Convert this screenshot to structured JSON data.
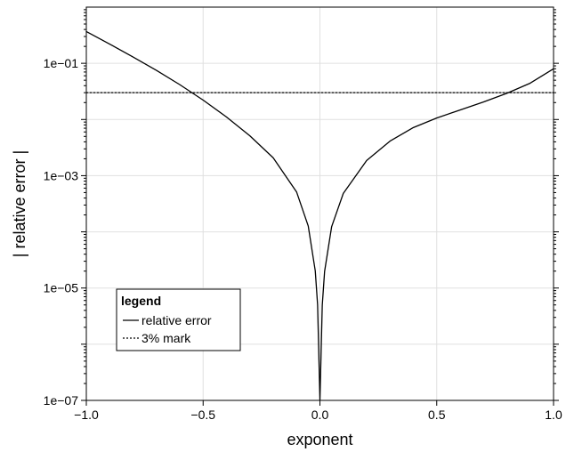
{
  "chart_data": {
    "type": "line",
    "title": "",
    "xlabel": "exponent",
    "ylabel": "| relative error |",
    "xlim": [
      -1.0,
      1.0
    ],
    "ylim": [
      1e-07,
      1.0
    ],
    "yscale": "log",
    "grid": true,
    "x_ticks": [
      -1.0,
      -0.5,
      0.0,
      0.5,
      1.0
    ],
    "x_tick_labels": [
      "−1.0",
      "−0.5",
      "0.0",
      "0.5",
      "1.0"
    ],
    "y_ticks": [
      1e-07,
      1e-05,
      0.001,
      0.1
    ],
    "y_tick_labels": [
      "1e−07",
      "1e−05",
      "1e−03",
      "1e−01"
    ],
    "legend": {
      "title": "legend",
      "position": "bottom-left",
      "entries": [
        "relative error",
        "3% mark"
      ]
    },
    "series": [
      {
        "name": "relative error",
        "style": "solid",
        "color": "#000000",
        "x": [
          -1.0,
          -0.9,
          -0.8,
          -0.7,
          -0.6,
          -0.5,
          -0.4,
          -0.3,
          -0.2,
          -0.1,
          -0.05,
          -0.02,
          -0.01,
          0.0,
          0.01,
          0.02,
          0.05,
          0.1,
          0.2,
          0.3,
          0.4,
          0.5,
          0.6,
          0.7,
          0.8,
          0.9,
          1.0
        ],
        "y": [
          0.368,
          0.2198,
          0.1297,
          0.0748,
          0.0417,
          0.02215,
          0.01108,
          0.00513,
          0.002078,
          0.0005133,
          0.0001266,
          2.02e-05,
          5.034e-06,
          1e-07,
          4.967e-06,
          1.98e-05,
          0.000123,
          0.0004837,
          0.001861,
          0.004118,
          0.007182,
          0.01061,
          0.01477,
          0.0205,
          0.02924,
          0.0443,
          0.08
        ]
      },
      {
        "name": "3% mark",
        "style": "dotted",
        "color": "#000000",
        "x": [
          -1.0,
          1.0
        ],
        "y": [
          0.03,
          0.03
        ]
      }
    ]
  }
}
